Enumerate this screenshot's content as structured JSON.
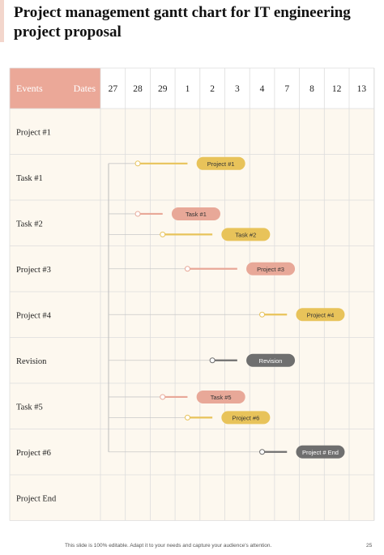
{
  "title": "Project management gantt chart for IT engineering project proposal",
  "footer": "This slide is 100% editable. Adapt it to your needs and capture your audience's attention.",
  "page_number": "25",
  "colors": {
    "header": "#eba898",
    "accent": "#f3d6cc",
    "grid": "#dddddd",
    "rows_bg": "#fdf8ef",
    "orange": "#e8a898",
    "yellow": "#e8c35a",
    "gray": "#6f6f6f"
  },
  "chart_data": {
    "type": "gantt",
    "header_events": "Events",
    "header_dates": "Dates",
    "dates": [
      "27",
      "28",
      "29",
      "1",
      "2",
      "3",
      "4",
      "7",
      "8",
      "12",
      "13"
    ],
    "rows": [
      "Project #1",
      "Task #1",
      "Task #2",
      "Project #3",
      "Project #4",
      "Revision",
      "Task #5",
      "Project #6",
      "Project End"
    ],
    "bars": [
      {
        "label": "Project #1",
        "row": "Task #1",
        "start": "28",
        "end": "1",
        "color": "yellow"
      },
      {
        "label": "Task #1",
        "row": "Task #2",
        "start": "28",
        "end": "29",
        "color": "orange"
      },
      {
        "label": "Task #2",
        "row": "Task #2",
        "start": "29",
        "end": "2",
        "color": "yellow"
      },
      {
        "label": "Project #3",
        "row": "Project #3",
        "start": "1",
        "end": "3",
        "color": "orange"
      },
      {
        "label": "Project #4",
        "row": "Project #4",
        "start": "4",
        "end": "7",
        "color": "yellow"
      },
      {
        "label": "Revision",
        "row": "Revision",
        "start": "2",
        "end": "3",
        "color": "gray"
      },
      {
        "label": "Task #5",
        "row": "Task #5",
        "start": "29",
        "end": "1",
        "color": "orange"
      },
      {
        "label": "Project #6",
        "row": "Task #5",
        "start": "1",
        "end": "2",
        "color": "yellow"
      },
      {
        "label": "Project # End",
        "row": "Project #6",
        "start": "4",
        "end": "7",
        "color": "gray"
      }
    ]
  }
}
